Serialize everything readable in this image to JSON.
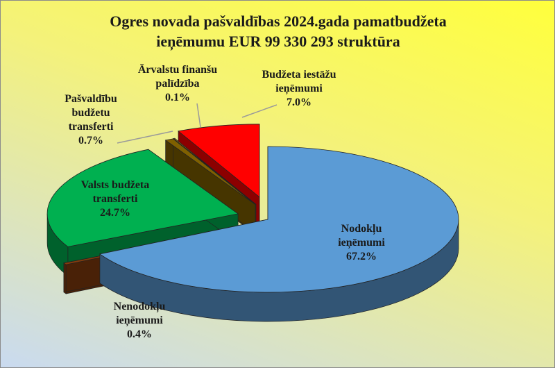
{
  "chart_data": {
    "type": "pie",
    "title": "Ogres novada pašvaldības 2024.gada pamatbudžeta ieņēmumu EUR 99 330 293 struktūra",
    "title_lines": [
      "Ogres novada pašvaldības  2024.gada pamatbudžeta",
      "ieņēmumu EUR 99 330 293 struktūra"
    ],
    "exploded_3d": true,
    "slices": [
      {
        "name": "Nodokļu ieņēmumi",
        "value": 67.2,
        "label_lines": [
          "Nodokļu",
          "ieņēmumi",
          "67.2%"
        ],
        "color": "#5b9bd5"
      },
      {
        "name": "Nenodokļu ieņēmumi",
        "value": 0.4,
        "label_lines": [
          "Nenodokļu",
          "ieņēmumi",
          "0.4%"
        ],
        "color": "#843c0c"
      },
      {
        "name": "Valsts budžeta transferti",
        "value": 24.7,
        "label_lines": [
          "Valsts budžeta",
          "transferti",
          "24.7%"
        ],
        "color": "#00b050"
      },
      {
        "name": "Pašvaldību budžetu transferti",
        "value": 0.7,
        "label_lines": [
          "Pašvaldību",
          "budžetu",
          "transferti",
          "0.7%"
        ],
        "color": "#7f6000"
      },
      {
        "name": "Ārvalstu finanšu palīdzība",
        "value": 0.1,
        "label_lines": [
          "Ārvalstu finanšu",
          "palīdzība",
          "0.1%"
        ],
        "color": "#ffc000"
      },
      {
        "name": "Budžeta iestāžu ieņēmumi",
        "value": 7.0,
        "label_lines": [
          "Budžeta iestāžu",
          "ieņēmumi",
          "7.0%"
        ],
        "color": "#ff0000"
      }
    ]
  }
}
